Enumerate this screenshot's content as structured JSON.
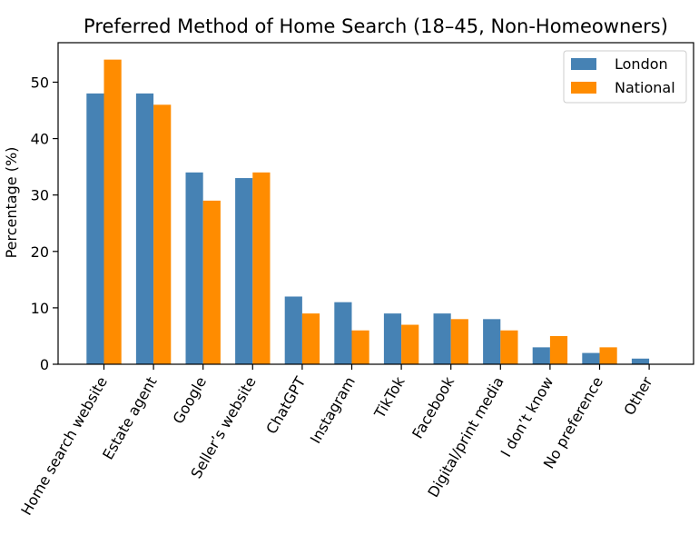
{
  "chart_data": {
    "type": "bar",
    "title": "Preferred Method of Home Search (18–45, Non-Homeowners)",
    "xlabel": "",
    "ylabel": "Percentage (%)",
    "ylim": [
      0,
      57
    ],
    "yticks": [
      0,
      10,
      20,
      30,
      40,
      50
    ],
    "categories": [
      "Home search website",
      "Estate agent",
      "Google",
      "Seller’s website",
      "ChatGPT",
      "Instagram",
      "TikTok",
      "Facebook",
      "Digital/print media",
      "I don’t know",
      "No preference",
      "Other"
    ],
    "series": [
      {
        "name": "London",
        "color": "#4682b4",
        "values": [
          48,
          48,
          34,
          33,
          12,
          11,
          9,
          9,
          8,
          3,
          2,
          1
        ]
      },
      {
        "name": "National",
        "color": "#ff8c00",
        "values": [
          54,
          46,
          29,
          34,
          9,
          6,
          7,
          8,
          6,
          5,
          3,
          0
        ]
      }
    ],
    "legend_position": "top-right",
    "grid": false
  }
}
